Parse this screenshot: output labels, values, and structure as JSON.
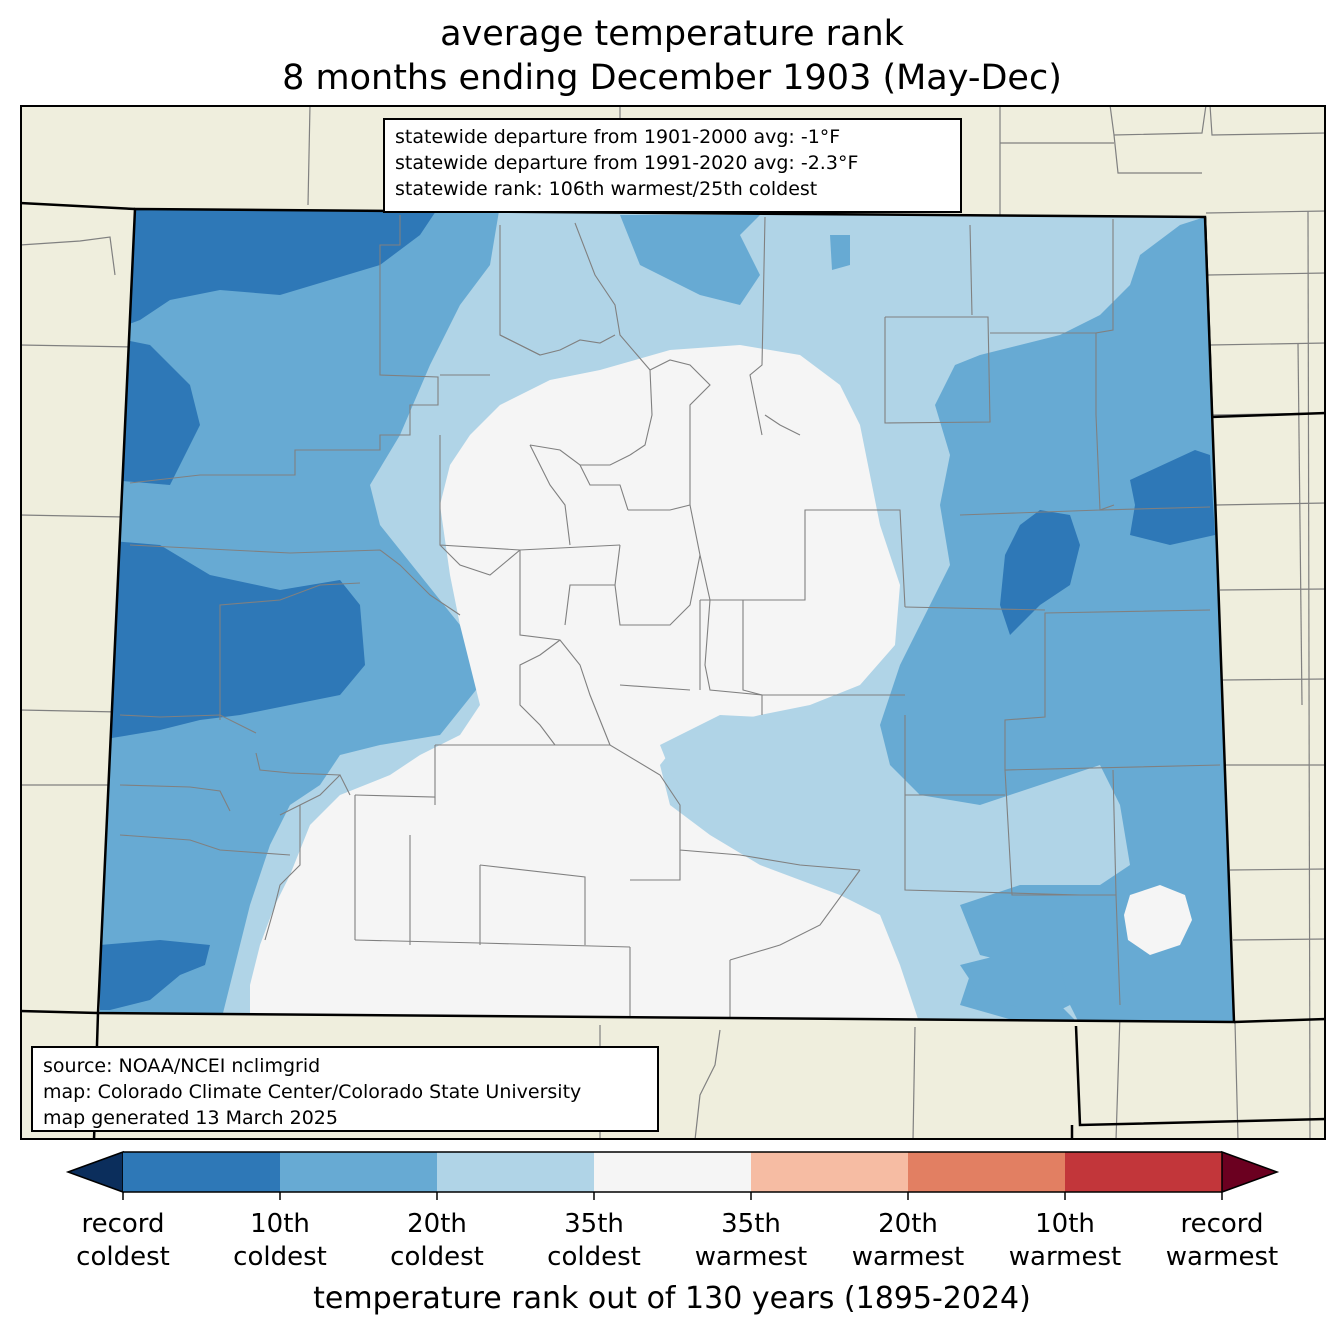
{
  "title": {
    "line1": "average temperature rank",
    "line2": "8 months ending December 1903 (May-Dec)"
  },
  "stats_box": {
    "lines": [
      "statewide departure from 1901-2000 avg: -1°F",
      "statewide departure from 1991-2020 avg: -2.3°F",
      "statewide rank: 106th warmest/25th coldest"
    ]
  },
  "source_box": {
    "lines": [
      "source: NOAA/NCEI nclimgrid",
      "map: Colorado Climate Center/Colorado State University",
      "map generated 13 March 2025"
    ]
  },
  "colorbar": {
    "title": "temperature rank out of 130 years (1895-2024)",
    "colors": [
      "#2e78b7",
      "#67aad3",
      "#b0d4e7",
      "#f5f5f5",
      "#f6bca3",
      "#e27f62",
      "#c2363a"
    ],
    "extend_low_color": "#0b2e5c",
    "extend_high_color": "#6b0020",
    "ticks": [
      {
        "line1": "record",
        "line2": "coldest"
      },
      {
        "line1": "10th",
        "line2": "coldest"
      },
      {
        "line1": "20th",
        "line2": "coldest"
      },
      {
        "line1": "35th",
        "line2": "coldest"
      },
      {
        "line1": "35th",
        "line2": "warmest"
      },
      {
        "line1": "20th",
        "line2": "warmest"
      },
      {
        "line1": "10th",
        "line2": "warmest"
      },
      {
        "line1": "record",
        "line2": "warmest"
      }
    ]
  },
  "map_colors": {
    "land_outside": "#efeedd",
    "record_coldest_to_10th": "#2e78b7",
    "10th_to_20th_coldest": "#67aad3",
    "20th_to_35th_coldest": "#b0d4e7",
    "near_normal": "#f5f5f5",
    "county_line": "#808080",
    "state_line": "#000000"
  }
}
